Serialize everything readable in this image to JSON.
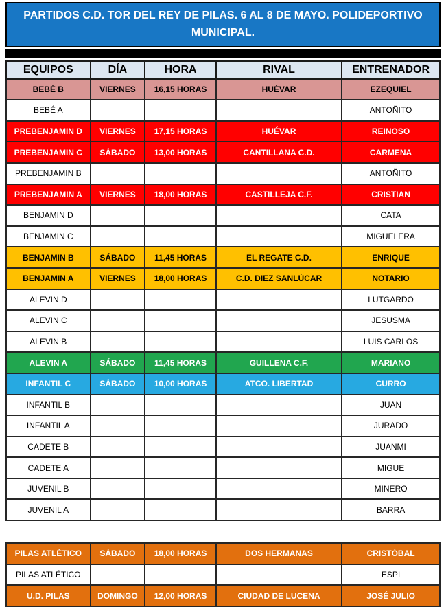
{
  "title": "PARTIDOS C.D. TOR DEL REY DE PILAS. 6 AL 8 DE MAYO. POLIDEPORTIVO MUNICIPAL.",
  "colors": {
    "title_bg": "#1877C5",
    "header_bg": "#DCE6F1",
    "salmon": "#D99694",
    "red": "#FF0000",
    "yellow": "#FFC000",
    "green": "#21A64F",
    "cyan": "#27A9E1",
    "orange": "#E2700E",
    "border": "#262626"
  },
  "main_table": {
    "headers": [
      "EQUIPOS",
      "DÍA",
      "HORA",
      "RIVAL",
      "ENTRENADOR"
    ],
    "rows": [
      {
        "style": "salmon",
        "cells": [
          "BEBÉ B",
          "VIERNES",
          "16,15 HORAS",
          "HUÉVAR",
          "EZEQUIEL"
        ]
      },
      {
        "style": "white",
        "cells": [
          "BEBÉ A",
          "",
          "",
          "",
          "ANTOÑITO"
        ]
      },
      {
        "style": "red",
        "cells": [
          "PREBENJAMIN D",
          "VIERNES",
          "17,15 HORAS",
          "HUÉVAR",
          "REINOSO"
        ]
      },
      {
        "style": "red",
        "cells": [
          "PREBENJAMIN C",
          "SÁBADO",
          "13,00 HORAS",
          "CANTILLANA C.D.",
          "CARMENA"
        ]
      },
      {
        "style": "white",
        "cells": [
          "PREBENJAMIN B",
          "",
          "",
          "",
          "ANTOÑITO"
        ]
      },
      {
        "style": "red",
        "cells": [
          "PREBENJAMIN A",
          "VIERNES",
          "18,00 HORAS",
          "CASTILLEJA C.F.",
          "CRISTIAN"
        ]
      },
      {
        "style": "white",
        "cells": [
          "BENJAMIN D",
          "",
          "",
          "",
          "CATA"
        ]
      },
      {
        "style": "white",
        "cells": [
          "BENJAMIN C",
          "",
          "",
          "",
          "MIGUELERA"
        ]
      },
      {
        "style": "yellow",
        "cells": [
          "BENJAMIN B",
          "SÁBADO",
          "11,45 HORAS",
          "EL REGATE C.D.",
          "ENRIQUE"
        ]
      },
      {
        "style": "yellow",
        "cells": [
          "BENJAMIN A",
          "VIERNES",
          "18,00 HORAS",
          "C.D. DIEZ SANLÚCAR",
          "NOTARIO"
        ]
      },
      {
        "style": "white",
        "cells": [
          "ALEVIN D",
          "",
          "",
          "",
          "LUTGARDO"
        ]
      },
      {
        "style": "white",
        "cells": [
          "ALEVIN C",
          "",
          "",
          "",
          "JESUSMA"
        ]
      },
      {
        "style": "white",
        "cells": [
          "ALEVIN B",
          "",
          "",
          "",
          "LUIS CARLOS"
        ]
      },
      {
        "style": "green",
        "cells": [
          "ALEVIN A",
          "SÁBADO",
          "11,45 HORAS",
          "GUILLENA C.F.",
          "MARIANO"
        ]
      },
      {
        "style": "cyan",
        "cells": [
          "INFANTIL C",
          "SÁBADO",
          "10,00 HORAS",
          "ATCO. LIBERTAD",
          "CURRO"
        ]
      },
      {
        "style": "white",
        "cells": [
          "INFANTIL B",
          "",
          "",
          "",
          "JUAN"
        ]
      },
      {
        "style": "white",
        "cells": [
          "INFANTIL A",
          "",
          "",
          "",
          "JURADO"
        ]
      },
      {
        "style": "white",
        "cells": [
          "CADETE B",
          "",
          "",
          "",
          "JUANMI"
        ]
      },
      {
        "style": "white",
        "cells": [
          "CADETE A",
          "",
          "",
          "",
          "MIGUE"
        ]
      },
      {
        "style": "white",
        "cells": [
          "JUVENIL B",
          "",
          "",
          "",
          "MINERO"
        ]
      },
      {
        "style": "white",
        "cells": [
          "JUVENIL A",
          "",
          "",
          "",
          "BARRA"
        ]
      }
    ]
  },
  "senior_table": {
    "rows": [
      {
        "style": "orange",
        "cells": [
          "PILAS ATLÉTICO",
          "SÁBADO",
          "18,00 HORAS",
          "DOS HERMANAS",
          "CRISTÓBAL"
        ]
      },
      {
        "style": "white",
        "cells": [
          "PILAS ATLÉTICO",
          "",
          "",
          "",
          "ESPI"
        ]
      },
      {
        "style": "orange",
        "cells": [
          "U.D. PILAS",
          "DOMINGO",
          "12,00 HORAS",
          "CIUDAD DE LUCENA",
          "JOSÉ JULIO"
        ]
      }
    ]
  }
}
